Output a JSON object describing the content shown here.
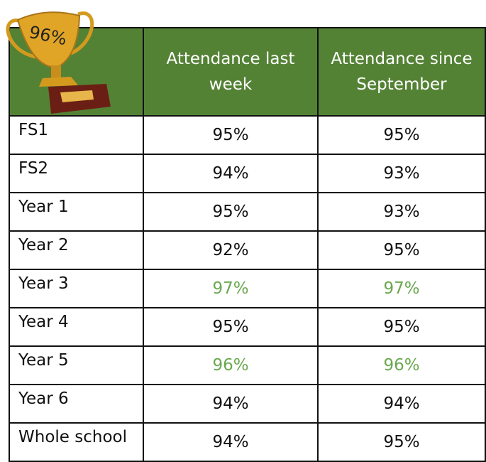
{
  "trophy": {
    "label": "96%"
  },
  "table": {
    "header": [
      "Attendance last week",
      "Attendance since September"
    ],
    "rows": [
      {
        "cells": [
          "FS1",
          "95%",
          "95%"
        ]
      },
      {
        "cells": [
          "FS2",
          "94%",
          "93%"
        ]
      },
      {
        "cells": [
          "Year 1",
          "95%",
          "93%"
        ]
      },
      {
        "cells": [
          "Year 2",
          "92%",
          "95%"
        ]
      },
      {
        "cells": [
          "Year 3",
          "97%",
          "97%"
        ],
        "color": "#6aa84f"
      },
      {
        "cells": [
          "Year 4",
          "95%",
          "95%"
        ]
      },
      {
        "cells": [
          "Year 5",
          "96%",
          "96%"
        ],
        "color": "#6aa84f"
      },
      {
        "cells": [
          "Year 6",
          "94%",
          "94%"
        ]
      },
      {
        "cells": [
          "Whole school",
          "94%",
          "95%"
        ]
      }
    ]
  }
}
